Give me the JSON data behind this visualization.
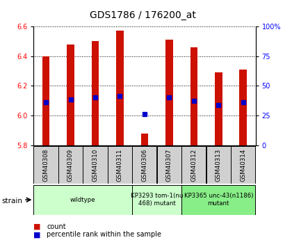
{
  "title": "GDS1786 / 176200_at",
  "samples": [
    "GSM40308",
    "GSM40309",
    "GSM40310",
    "GSM40311",
    "GSM40306",
    "GSM40307",
    "GSM40312",
    "GSM40313",
    "GSM40314"
  ],
  "count_values": [
    6.4,
    6.48,
    6.5,
    6.57,
    5.88,
    6.51,
    6.46,
    6.29,
    6.31
  ],
  "percentile_values": [
    6.09,
    6.11,
    6.12,
    6.13,
    6.01,
    6.12,
    6.1,
    6.07,
    6.09
  ],
  "bar_bottom": 5.8,
  "ylim": [
    5.8,
    6.6
  ],
  "yticks_left": [
    5.8,
    6.0,
    6.2,
    6.4,
    6.6
  ],
  "yticks_right": [
    0,
    25,
    50,
    75,
    100
  ],
  "bar_color": "#cc1100",
  "dot_color": "#0000cc",
  "strain_groups": [
    {
      "label": "wildtype",
      "start": 0,
      "end": 4,
      "color": "#ccffcc"
    },
    {
      "label": "KP3293 tom-1(nu\n468) mutant",
      "start": 4,
      "end": 6,
      "color": "#ccffcc"
    },
    {
      "label": "KP3365 unc-43(n1186)\nmutant",
      "start": 6,
      "end": 9,
      "color": "#88ee88"
    }
  ],
  "legend_items": [
    {
      "label": "count",
      "color": "#cc1100"
    },
    {
      "label": "percentile rank within the sample",
      "color": "#0000cc"
    }
  ],
  "bar_width": 0.3
}
